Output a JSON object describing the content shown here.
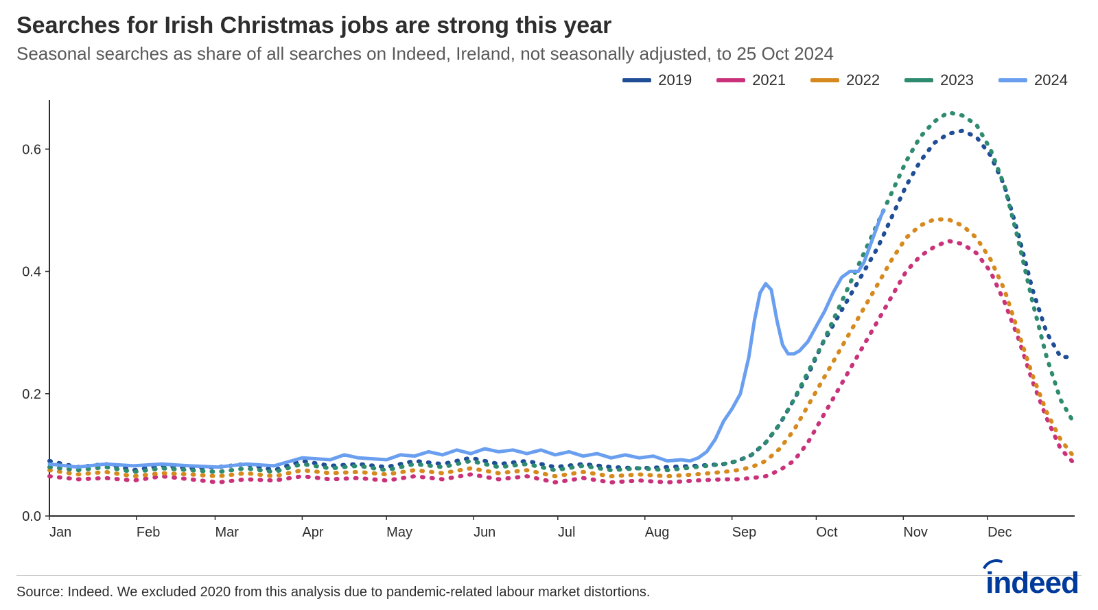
{
  "title": "Searches for Irish Christmas jobs are strong this year",
  "subtitle": "Seasonal searches as share of all searches on Indeed, Ireland, not seasonally adjusted, to 25 Oct 2024",
  "source": "Source: Indeed. We excluded 2020 from this analysis due to pandemic-related labour market distortions.",
  "logo_text": "indeed",
  "chart": {
    "type": "line",
    "background_color": "#ffffff",
    "axis_color": "#2d2d2d",
    "axis_stroke_width": 2,
    "tick_font_size": 20,
    "tick_color": "#2d2d2d",
    "x": {
      "domain": [
        0,
        365
      ],
      "ticks": [
        {
          "pos": 0,
          "label": "Jan"
        },
        {
          "pos": 31,
          "label": "Feb"
        },
        {
          "pos": 59,
          "label": "Mar"
        },
        {
          "pos": 90,
          "label": "Apr"
        },
        {
          "pos": 120,
          "label": "May"
        },
        {
          "pos": 151,
          "label": "Jun"
        },
        {
          "pos": 181,
          "label": "Jul"
        },
        {
          "pos": 212,
          "label": "Aug"
        },
        {
          "pos": 243,
          "label": "Sep"
        },
        {
          "pos": 273,
          "label": "Oct"
        },
        {
          "pos": 304,
          "label": "Nov"
        },
        {
          "pos": 334,
          "label": "Dec"
        }
      ]
    },
    "y": {
      "domain": [
        0,
        0.68
      ],
      "ticks": [
        {
          "pos": 0.0,
          "label": "0.0"
        },
        {
          "pos": 0.2,
          "label": "0.2"
        },
        {
          "pos": 0.4,
          "label": "0.4"
        },
        {
          "pos": 0.6,
          "label": "0.6"
        }
      ]
    },
    "legend": [
      {
        "label": "2019",
        "color": "#1f4e96"
      },
      {
        "label": "2021",
        "color": "#c9327a"
      },
      {
        "label": "2022",
        "color": "#d68a1e"
      },
      {
        "label": "2023",
        "color": "#2e8b6f"
      },
      {
        "label": "2024",
        "color": "#6a9ff0"
      }
    ],
    "line_width_dotted": 6,
    "line_width_solid": 5,
    "dash_pattern": "2 12",
    "series": [
      {
        "name": "2019",
        "color": "#1f4e96",
        "style": "dotted",
        "points": [
          [
            0,
            0.09
          ],
          [
            10,
            0.08
          ],
          [
            20,
            0.085
          ],
          [
            30,
            0.075
          ],
          [
            40,
            0.082
          ],
          [
            50,
            0.078
          ],
          [
            60,
            0.08
          ],
          [
            70,
            0.085
          ],
          [
            80,
            0.075
          ],
          [
            90,
            0.09
          ],
          [
            100,
            0.082
          ],
          [
            110,
            0.085
          ],
          [
            120,
            0.08
          ],
          [
            130,
            0.09
          ],
          [
            140,
            0.085
          ],
          [
            150,
            0.095
          ],
          [
            160,
            0.085
          ],
          [
            170,
            0.09
          ],
          [
            180,
            0.08
          ],
          [
            190,
            0.085
          ],
          [
            200,
            0.08
          ],
          [
            210,
            0.078
          ],
          [
            220,
            0.08
          ],
          [
            230,
            0.082
          ],
          [
            240,
            0.085
          ],
          [
            245,
            0.09
          ],
          [
            250,
            0.1
          ],
          [
            255,
            0.12
          ],
          [
            260,
            0.15
          ],
          [
            265,
            0.19
          ],
          [
            270,
            0.23
          ],
          [
            275,
            0.28
          ],
          [
            280,
            0.32
          ],
          [
            285,
            0.36
          ],
          [
            290,
            0.4
          ],
          [
            295,
            0.44
          ],
          [
            300,
            0.49
          ],
          [
            305,
            0.54
          ],
          [
            310,
            0.58
          ],
          [
            315,
            0.61
          ],
          [
            320,
            0.625
          ],
          [
            325,
            0.63
          ],
          [
            330,
            0.62
          ],
          [
            335,
            0.59
          ],
          [
            340,
            0.54
          ],
          [
            345,
            0.46
          ],
          [
            350,
            0.37
          ],
          [
            355,
            0.3
          ],
          [
            360,
            0.26
          ],
          [
            365,
            0.26
          ]
        ]
      },
      {
        "name": "2021",
        "color": "#c9327a",
        "style": "dotted",
        "points": [
          [
            0,
            0.065
          ],
          [
            10,
            0.06
          ],
          [
            20,
            0.062
          ],
          [
            30,
            0.058
          ],
          [
            40,
            0.065
          ],
          [
            50,
            0.06
          ],
          [
            60,
            0.055
          ],
          [
            70,
            0.06
          ],
          [
            80,
            0.058
          ],
          [
            90,
            0.065
          ],
          [
            100,
            0.06
          ],
          [
            110,
            0.062
          ],
          [
            120,
            0.058
          ],
          [
            130,
            0.065
          ],
          [
            140,
            0.06
          ],
          [
            150,
            0.068
          ],
          [
            160,
            0.06
          ],
          [
            170,
            0.065
          ],
          [
            180,
            0.055
          ],
          [
            190,
            0.062
          ],
          [
            200,
            0.055
          ],
          [
            210,
            0.058
          ],
          [
            220,
            0.055
          ],
          [
            230,
            0.058
          ],
          [
            240,
            0.06
          ],
          [
            245,
            0.06
          ],
          [
            250,
            0.062
          ],
          [
            255,
            0.065
          ],
          [
            260,
            0.075
          ],
          [
            265,
            0.09
          ],
          [
            270,
            0.12
          ],
          [
            275,
            0.16
          ],
          [
            280,
            0.2
          ],
          [
            285,
            0.24
          ],
          [
            290,
            0.28
          ],
          [
            295,
            0.32
          ],
          [
            300,
            0.36
          ],
          [
            305,
            0.4
          ],
          [
            310,
            0.425
          ],
          [
            315,
            0.44
          ],
          [
            320,
            0.45
          ],
          [
            325,
            0.445
          ],
          [
            330,
            0.43
          ],
          [
            335,
            0.4
          ],
          [
            340,
            0.35
          ],
          [
            345,
            0.29
          ],
          [
            350,
            0.22
          ],
          [
            355,
            0.16
          ],
          [
            360,
            0.11
          ],
          [
            365,
            0.085
          ]
        ]
      },
      {
        "name": "2022",
        "color": "#d68a1e",
        "style": "dotted",
        "points": [
          [
            0,
            0.075
          ],
          [
            10,
            0.068
          ],
          [
            20,
            0.072
          ],
          [
            30,
            0.065
          ],
          [
            40,
            0.07
          ],
          [
            50,
            0.068
          ],
          [
            60,
            0.065
          ],
          [
            70,
            0.07
          ],
          [
            80,
            0.065
          ],
          [
            90,
            0.075
          ],
          [
            100,
            0.07
          ],
          [
            110,
            0.072
          ],
          [
            120,
            0.068
          ],
          [
            130,
            0.075
          ],
          [
            140,
            0.07
          ],
          [
            150,
            0.078
          ],
          [
            160,
            0.07
          ],
          [
            170,
            0.075
          ],
          [
            180,
            0.065
          ],
          [
            190,
            0.072
          ],
          [
            200,
            0.065
          ],
          [
            210,
            0.068
          ],
          [
            220,
            0.065
          ],
          [
            230,
            0.068
          ],
          [
            240,
            0.072
          ],
          [
            245,
            0.075
          ],
          [
            250,
            0.08
          ],
          [
            255,
            0.09
          ],
          [
            260,
            0.11
          ],
          [
            265,
            0.14
          ],
          [
            270,
            0.18
          ],
          [
            275,
            0.22
          ],
          [
            280,
            0.26
          ],
          [
            285,
            0.3
          ],
          [
            290,
            0.34
          ],
          [
            295,
            0.38
          ],
          [
            300,
            0.42
          ],
          [
            305,
            0.455
          ],
          [
            310,
            0.475
          ],
          [
            315,
            0.485
          ],
          [
            320,
            0.485
          ],
          [
            325,
            0.475
          ],
          [
            330,
            0.455
          ],
          [
            335,
            0.42
          ],
          [
            340,
            0.37
          ],
          [
            345,
            0.3
          ],
          [
            350,
            0.23
          ],
          [
            355,
            0.17
          ],
          [
            360,
            0.125
          ],
          [
            365,
            0.095
          ]
        ]
      },
      {
        "name": "2023",
        "color": "#2e8b6f",
        "style": "dotted",
        "points": [
          [
            0,
            0.08
          ],
          [
            10,
            0.075
          ],
          [
            20,
            0.08
          ],
          [
            30,
            0.072
          ],
          [
            40,
            0.078
          ],
          [
            50,
            0.075
          ],
          [
            60,
            0.072
          ],
          [
            70,
            0.078
          ],
          [
            80,
            0.072
          ],
          [
            90,
            0.085
          ],
          [
            100,
            0.078
          ],
          [
            110,
            0.082
          ],
          [
            120,
            0.075
          ],
          [
            130,
            0.085
          ],
          [
            140,
            0.08
          ],
          [
            150,
            0.09
          ],
          [
            160,
            0.08
          ],
          [
            170,
            0.085
          ],
          [
            180,
            0.075
          ],
          [
            190,
            0.082
          ],
          [
            200,
            0.075
          ],
          [
            210,
            0.078
          ],
          [
            220,
            0.075
          ],
          [
            230,
            0.08
          ],
          [
            240,
            0.085
          ],
          [
            245,
            0.09
          ],
          [
            250,
            0.1
          ],
          [
            255,
            0.12
          ],
          [
            260,
            0.15
          ],
          [
            265,
            0.19
          ],
          [
            270,
            0.235
          ],
          [
            275,
            0.28
          ],
          [
            280,
            0.33
          ],
          [
            285,
            0.38
          ],
          [
            290,
            0.43
          ],
          [
            295,
            0.48
          ],
          [
            300,
            0.53
          ],
          [
            305,
            0.58
          ],
          [
            310,
            0.62
          ],
          [
            315,
            0.645
          ],
          [
            320,
            0.66
          ],
          [
            325,
            0.655
          ],
          [
            330,
            0.64
          ],
          [
            335,
            0.6
          ],
          [
            340,
            0.54
          ],
          [
            345,
            0.45
          ],
          [
            350,
            0.35
          ],
          [
            355,
            0.26
          ],
          [
            360,
            0.19
          ],
          [
            365,
            0.15
          ]
        ]
      },
      {
        "name": "2024",
        "color": "#6a9ff0",
        "style": "solid",
        "points": [
          [
            0,
            0.085
          ],
          [
            10,
            0.08
          ],
          [
            20,
            0.085
          ],
          [
            30,
            0.082
          ],
          [
            40,
            0.085
          ],
          [
            50,
            0.082
          ],
          [
            60,
            0.08
          ],
          [
            70,
            0.085
          ],
          [
            80,
            0.082
          ],
          [
            90,
            0.095
          ],
          [
            100,
            0.092
          ],
          [
            105,
            0.1
          ],
          [
            110,
            0.095
          ],
          [
            120,
            0.092
          ],
          [
            125,
            0.1
          ],
          [
            130,
            0.098
          ],
          [
            135,
            0.105
          ],
          [
            140,
            0.1
          ],
          [
            145,
            0.108
          ],
          [
            150,
            0.102
          ],
          [
            155,
            0.11
          ],
          [
            160,
            0.105
          ],
          [
            165,
            0.108
          ],
          [
            170,
            0.102
          ],
          [
            175,
            0.108
          ],
          [
            180,
            0.1
          ],
          [
            185,
            0.105
          ],
          [
            190,
            0.098
          ],
          [
            195,
            0.102
          ],
          [
            200,
            0.095
          ],
          [
            205,
            0.1
          ],
          [
            210,
            0.095
          ],
          [
            215,
            0.098
          ],
          [
            220,
            0.09
          ],
          [
            225,
            0.092
          ],
          [
            228,
            0.09
          ],
          [
            231,
            0.095
          ],
          [
            234,
            0.105
          ],
          [
            237,
            0.125
          ],
          [
            240,
            0.155
          ],
          [
            243,
            0.175
          ],
          [
            246,
            0.2
          ],
          [
            249,
            0.26
          ],
          [
            251,
            0.32
          ],
          [
            253,
            0.365
          ],
          [
            255,
            0.38
          ],
          [
            257,
            0.37
          ],
          [
            259,
            0.32
          ],
          [
            261,
            0.28
          ],
          [
            263,
            0.265
          ],
          [
            265,
            0.265
          ],
          [
            267,
            0.27
          ],
          [
            270,
            0.285
          ],
          [
            273,
            0.31
          ],
          [
            276,
            0.335
          ],
          [
            279,
            0.365
          ],
          [
            282,
            0.39
          ],
          [
            285,
            0.4
          ],
          [
            288,
            0.4
          ],
          [
            290,
            0.415
          ],
          [
            292,
            0.44
          ],
          [
            294,
            0.465
          ],
          [
            296,
            0.49
          ],
          [
            297,
            0.5
          ]
        ]
      }
    ]
  }
}
